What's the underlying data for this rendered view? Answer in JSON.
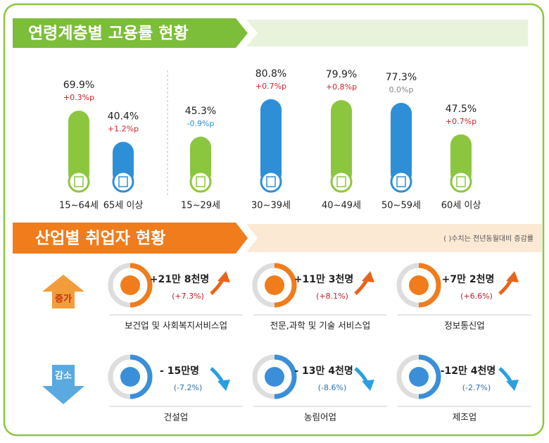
{
  "chart_data": {
    "type": "bar",
    "title": "연령계층별 고용률 현황",
    "categories": [
      "15~64세",
      "65세 이상",
      "15~29세",
      "30~39세",
      "40~49세",
      "50~59세",
      "60세 이상"
    ],
    "values": [
      69.9,
      40.4,
      45.3,
      80.8,
      79.9,
      77.3,
      47.5
    ],
    "value_labels": [
      "69.9%",
      "40.4%",
      "45.3%",
      "80.8%",
      "79.9%",
      "77.3%",
      "47.5%"
    ],
    "annotations": [
      "+0.3%p",
      "+1.2%p",
      "-0.9%p",
      "+0.7%p",
      "+0.8%p",
      "0.0%p",
      "+0.7%p"
    ],
    "colors": [
      "#8cc63f",
      "#2e8fd6",
      "#8cc63f",
      "#2e8fd6",
      "#8cc63f",
      "#2e8fd6",
      "#8cc63f"
    ]
  },
  "industry": {
    "title": "산업별 취업자 현황",
    "note": "( )수치는 전년동월대비 증감률",
    "increase": {
      "label": "증가",
      "items": [
        {
          "change": "+21만 8천명",
          "rate": "(+7.3%)",
          "name": "보건업 및 사회복지서비스업"
        },
        {
          "change": "+11만 3천명",
          "rate": "(+8.1%)",
          "name": "전문,과학 및 기술 서비스업"
        },
        {
          "change": "+7만 2천명",
          "rate": "(+6.6%)",
          "name": "정보통신업"
        }
      ]
    },
    "decrease": {
      "label": "감소",
      "items": [
        {
          "change": "- 15만명",
          "rate": "(-7.2%)",
          "name": "건설업"
        },
        {
          "change": "- 13만 4천명",
          "rate": "(-8.6%)",
          "name": "농림어업"
        },
        {
          "change": "-12만 4천명",
          "rate": "(-2.7%)",
          "name": "제조업"
        }
      ]
    }
  }
}
